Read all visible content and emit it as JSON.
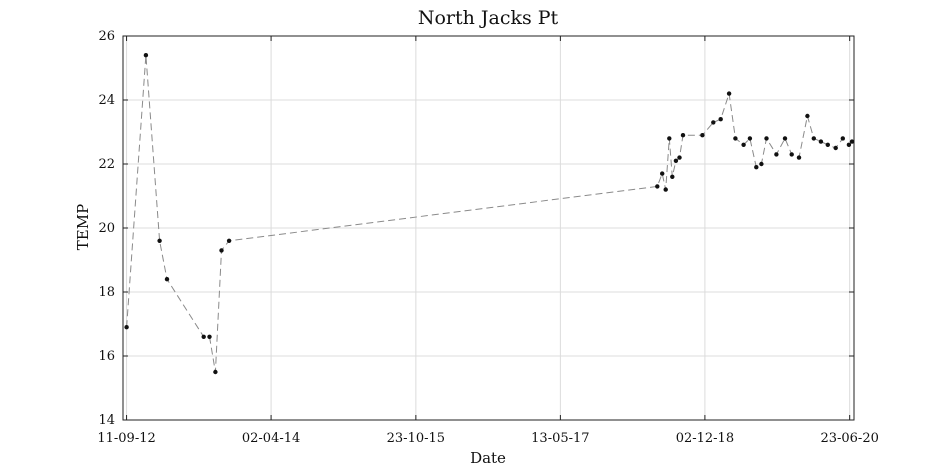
{
  "chart_data": {
    "type": "line",
    "title": "North Jacks Pt",
    "xlabel": "Date",
    "ylabel": "TEMP",
    "ylim": [
      14,
      26
    ],
    "yticks": [
      14,
      16,
      18,
      20,
      22,
      24,
      26
    ],
    "xlim": [
      "2012-08-28",
      "2020-07-10"
    ],
    "xticks": [
      {
        "date": "2012-09-11",
        "label": "11-09-12"
      },
      {
        "date": "2014-04-02",
        "label": "02-04-14"
      },
      {
        "date": "2015-10-23",
        "label": "23-10-15"
      },
      {
        "date": "2017-05-13",
        "label": "13-05-17"
      },
      {
        "date": "2018-12-02",
        "label": "02-12-18"
      },
      {
        "date": "2020-06-23",
        "label": "23-06-20"
      }
    ],
    "grid": true,
    "series": [
      {
        "x": [
          "2012-09-11",
          "2012-11-26",
          "2013-01-19",
          "2013-02-17",
          "2013-07-11",
          "2013-08-03",
          "2013-08-26",
          "2013-09-19",
          "2013-10-19",
          "2018-05-29",
          "2018-06-17",
          "2018-07-01",
          "2018-07-15",
          "2018-07-27",
          "2018-08-10",
          "2018-08-24",
          "2018-09-07",
          "2018-11-22",
          "2019-01-04",
          "2019-02-02",
          "2019-03-07",
          "2019-04-01",
          "2019-05-03",
          "2019-05-28",
          "2019-06-22",
          "2019-07-12",
          "2019-08-01",
          "2019-09-09",
          "2019-10-13",
          "2019-11-08",
          "2019-12-07",
          "2020-01-09",
          "2020-02-03",
          "2020-03-02",
          "2020-03-29",
          "2020-04-29",
          "2020-05-27",
          "2020-06-20",
          "2020-07-02"
        ],
        "y": [
          16.9,
          25.4,
          19.6,
          18.4,
          16.6,
          16.6,
          15.5,
          19.3,
          19.6,
          21.3,
          21.7,
          21.2,
          22.8,
          21.6,
          22.1,
          22.2,
          22.9,
          22.9,
          23.3,
          23.4,
          24.2,
          22.8,
          22.6,
          22.8,
          21.9,
          22.0,
          22.8,
          22.3,
          22.8,
          22.3,
          22.2,
          23.5,
          22.8,
          22.7,
          22.6,
          22.5,
          22.8,
          22.6,
          22.7
        ]
      }
    ]
  }
}
